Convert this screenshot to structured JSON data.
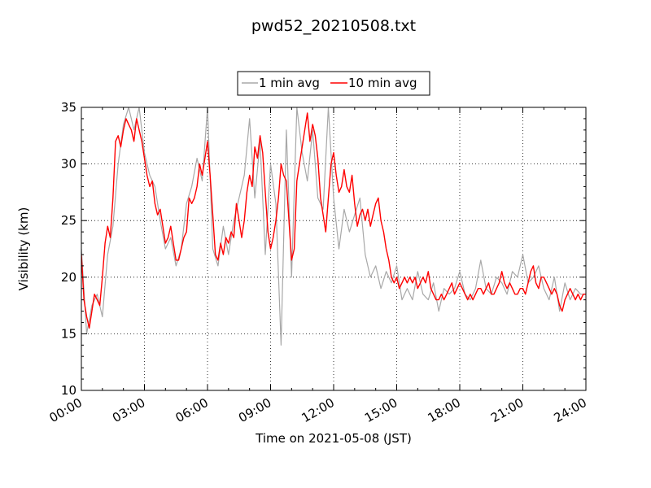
{
  "chart_data": {
    "type": "line",
    "title": "pwd52_20210508.txt",
    "xlabel": "Time on 2021-05-08 (JST)",
    "ylabel": "Visibility (km)",
    "xlim": [
      "00:00",
      "24:00"
    ],
    "ylim": [
      10,
      35
    ],
    "x_tick_labels": [
      "00:00",
      "03:00",
      "06:00",
      "09:00",
      "12:00",
      "15:00",
      "18:00",
      "21:00",
      "24:00"
    ],
    "y_tick_labels": [
      "10",
      "15",
      "20",
      "25",
      "30",
      "35"
    ],
    "grid": true,
    "legend_position": "top-center",
    "x_unit": "hours",
    "series": [
      {
        "name": "1 min avg",
        "color": "#a8a8a8",
        "x": [
          0.0,
          0.25,
          0.5,
          0.75,
          1.0,
          1.25,
          1.5,
          1.75,
          2.0,
          2.25,
          2.5,
          2.75,
          3.0,
          3.25,
          3.5,
          3.75,
          4.0,
          4.25,
          4.5,
          4.75,
          5.0,
          5.25,
          5.5,
          5.75,
          6.0,
          6.25,
          6.5,
          6.75,
          7.0,
          7.25,
          7.5,
          7.75,
          8.0,
          8.25,
          8.5,
          8.75,
          9.0,
          9.25,
          9.5,
          9.75,
          10.0,
          10.25,
          10.5,
          10.75,
          11.0,
          11.25,
          11.5,
          11.75,
          12.0,
          12.25,
          12.5,
          12.75,
          13.0,
          13.25,
          13.5,
          13.75,
          14.0,
          14.25,
          14.5,
          14.75,
          15.0,
          15.25,
          15.5,
          15.75,
          16.0,
          16.25,
          16.5,
          16.75,
          17.0,
          17.25,
          17.5,
          17.75,
          18.0,
          18.25,
          18.5,
          18.75,
          19.0,
          19.25,
          19.5,
          19.75,
          20.0,
          20.25,
          20.5,
          20.75,
          21.0,
          21.25,
          21.5,
          21.75,
          22.0,
          22.25,
          22.5,
          22.75,
          23.0,
          23.25,
          23.5,
          23.75,
          24.0
        ],
        "y": [
          22.5,
          15.0,
          17.5,
          18.5,
          16.5,
          22.0,
          24.5,
          30.0,
          33.5,
          35.0,
          33.0,
          35.0,
          31.0,
          29.0,
          28.0,
          25.0,
          22.5,
          23.5,
          21.0,
          22.5,
          26.5,
          28.0,
          30.5,
          28.5,
          35.0,
          22.5,
          21.0,
          24.5,
          22.0,
          25.0,
          27.0,
          29.0,
          34.0,
          27.0,
          32.0,
          22.0,
          30.0,
          26.5,
          14.0,
          33.0,
          20.0,
          35.0,
          31.0,
          28.5,
          33.0,
          27.0,
          26.0,
          35.0,
          27.0,
          22.5,
          26.0,
          24.0,
          25.5,
          27.0,
          22.0,
          20.0,
          21.0,
          19.0,
          20.5,
          19.5,
          21.0,
          18.0,
          19.0,
          18.0,
          20.5,
          18.5,
          18.0,
          19.5,
          17.0,
          19.0,
          18.5,
          19.0,
          20.5,
          18.5,
          18.0,
          19.0,
          21.5,
          19.0,
          18.5,
          20.0,
          19.5,
          18.5,
          20.5,
          20.0,
          22.0,
          19.5,
          20.0,
          21.0,
          19.0,
          18.0,
          20.0,
          17.0,
          19.5,
          18.0,
          19.0,
          18.5,
          18.5
        ]
      },
      {
        "name": "10 min avg",
        "color": "#ff0000",
        "x": [
          0.0,
          0.125,
          0.25,
          0.375,
          0.5,
          0.625,
          0.75,
          0.875,
          1.0,
          1.125,
          1.25,
          1.375,
          1.5,
          1.625,
          1.75,
          1.875,
          2.0,
          2.125,
          2.25,
          2.375,
          2.5,
          2.625,
          2.75,
          2.875,
          3.0,
          3.125,
          3.25,
          3.375,
          3.5,
          3.625,
          3.75,
          3.875,
          4.0,
          4.125,
          4.25,
          4.375,
          4.5,
          4.625,
          4.75,
          4.875,
          5.0,
          5.125,
          5.25,
          5.375,
          5.5,
          5.625,
          5.75,
          5.875,
          6.0,
          6.125,
          6.25,
          6.375,
          6.5,
          6.625,
          6.75,
          6.875,
          7.0,
          7.125,
          7.25,
          7.375,
          7.5,
          7.625,
          7.75,
          7.875,
          8.0,
          8.125,
          8.25,
          8.375,
          8.5,
          8.625,
          8.75,
          8.875,
          9.0,
          9.125,
          9.25,
          9.375,
          9.5,
          9.625,
          9.75,
          9.875,
          10.0,
          10.125,
          10.25,
          10.375,
          10.5,
          10.625,
          10.75,
          10.875,
          11.0,
          11.125,
          11.25,
          11.375,
          11.5,
          11.625,
          11.75,
          11.875,
          12.0,
          12.125,
          12.25,
          12.375,
          12.5,
          12.625,
          12.75,
          12.875,
          13.0,
          13.125,
          13.25,
          13.375,
          13.5,
          13.625,
          13.75,
          13.875,
          14.0,
          14.125,
          14.25,
          14.375,
          14.5,
          14.625,
          14.75,
          14.875,
          15.0,
          15.125,
          15.25,
          15.375,
          15.5,
          15.625,
          15.75,
          15.875,
          16.0,
          16.125,
          16.25,
          16.375,
          16.5,
          16.625,
          16.75,
          16.875,
          17.0,
          17.125,
          17.25,
          17.375,
          17.5,
          17.625,
          17.75,
          17.875,
          18.0,
          18.125,
          18.25,
          18.375,
          18.5,
          18.625,
          18.75,
          18.875,
          19.0,
          19.125,
          19.25,
          19.375,
          19.5,
          19.625,
          19.75,
          19.875,
          20.0,
          20.125,
          20.25,
          20.375,
          20.5,
          20.625,
          20.75,
          20.875,
          21.0,
          21.125,
          21.25,
          21.375,
          21.5,
          21.625,
          21.75,
          21.875,
          22.0,
          22.125,
          22.25,
          22.375,
          22.5,
          22.625,
          22.75,
          22.875,
          23.0,
          23.125,
          23.25,
          23.375,
          23.5,
          23.625,
          23.75,
          23.875,
          24.0
        ],
        "y": [
          22.0,
          18.0,
          16.5,
          15.5,
          17.0,
          18.5,
          18.0,
          17.5,
          20.0,
          23.0,
          24.5,
          23.5,
          27.0,
          32.0,
          32.5,
          31.5,
          33.0,
          34.0,
          33.5,
          33.0,
          32.0,
          34.0,
          33.0,
          32.0,
          30.5,
          29.0,
          28.0,
          28.5,
          26.5,
          25.5,
          26.0,
          24.5,
          23.0,
          23.5,
          24.5,
          23.0,
          21.5,
          21.5,
          22.5,
          23.5,
          24.0,
          27.0,
          26.5,
          27.0,
          28.0,
          30.0,
          29.0,
          30.5,
          32.0,
          29.0,
          25.5,
          22.0,
          21.5,
          23.0,
          22.0,
          23.5,
          23.0,
          24.0,
          23.5,
          26.5,
          25.0,
          23.5,
          25.0,
          27.5,
          29.0,
          28.0,
          31.5,
          30.5,
          32.5,
          31.0,
          27.5,
          24.0,
          22.5,
          23.5,
          25.0,
          27.0,
          30.0,
          29.0,
          28.5,
          25.0,
          21.5,
          22.5,
          28.5,
          30.0,
          31.5,
          33.0,
          34.5,
          32.0,
          33.5,
          32.5,
          30.5,
          27.0,
          25.5,
          24.0,
          27.0,
          30.0,
          31.0,
          29.0,
          27.5,
          28.0,
          29.5,
          28.0,
          27.5,
          29.0,
          26.5,
          24.5,
          25.5,
          26.0,
          25.0,
          26.0,
          24.5,
          25.5,
          26.5,
          27.0,
          25.0,
          24.0,
          22.5,
          21.5,
          20.0,
          19.5,
          20.0,
          19.0,
          19.5,
          20.0,
          19.5,
          20.0,
          19.5,
          20.0,
          19.0,
          19.5,
          20.0,
          19.5,
          20.5,
          19.0,
          18.5,
          18.0,
          18.0,
          18.5,
          18.0,
          18.5,
          19.0,
          19.5,
          18.5,
          19.0,
          19.5,
          19.0,
          18.5,
          18.0,
          18.5,
          18.0,
          18.5,
          19.0,
          19.0,
          18.5,
          19.0,
          19.5,
          18.5,
          18.5,
          19.0,
          19.5,
          20.5,
          19.5,
          19.0,
          19.5,
          19.0,
          18.5,
          18.5,
          19.0,
          19.0,
          18.5,
          19.5,
          20.5,
          21.0,
          19.5,
          19.0,
          20.0,
          20.0,
          19.5,
          19.0,
          18.5,
          19.0,
          18.5,
          17.5,
          17.0,
          18.0,
          18.5,
          19.0,
          18.5,
          18.0,
          18.5,
          18.0,
          18.5,
          18.5
        ]
      }
    ]
  }
}
